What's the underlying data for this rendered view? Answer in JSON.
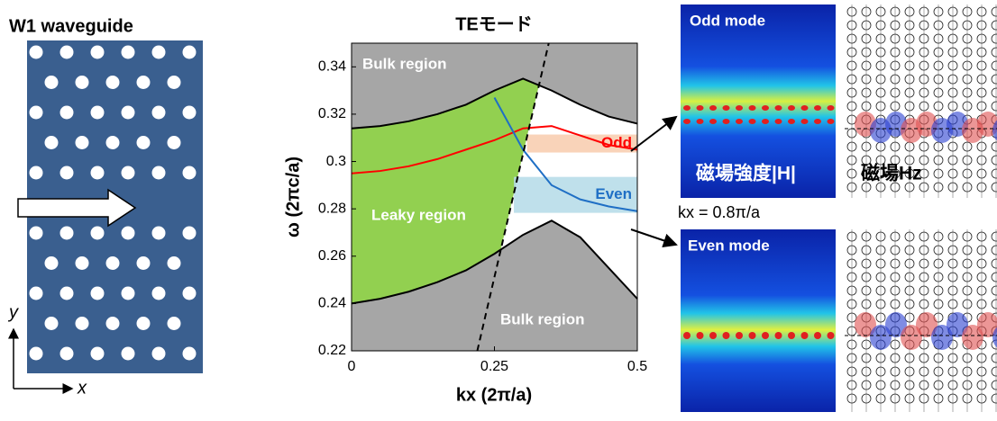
{
  "left_panel": {
    "title": "W1 waveguide",
    "x_axis": "x",
    "y_axis": "y"
  },
  "chart_data": {
    "type": "line",
    "title": "TEモード",
    "x_label": "kx (2π/a)",
    "y_label": "ω (2πc/a)",
    "xlim": [
      0,
      0.5
    ],
    "ylim": [
      0.22,
      0.35
    ],
    "xticks": [
      0,
      0.25,
      0.5
    ],
    "yticks": [
      0.22,
      0.24,
      0.26,
      0.28,
      0.3,
      0.32,
      0.34
    ],
    "x": [
      0,
      0.05,
      0.1,
      0.15,
      0.2,
      0.25,
      0.3,
      0.35,
      0.4,
      0.45,
      0.5
    ],
    "series": [
      {
        "color": "#000000",
        "values": [
          0.314,
          0.315,
          0.317,
          0.32,
          0.324,
          0.33,
          0.335,
          0.33,
          0.324,
          0.319,
          0.316
        ]
      },
      {
        "color": "#000000",
        "values": [
          0.24,
          0.242,
          0.245,
          0.249,
          0.254,
          0.261,
          0.269,
          0.275,
          0.268,
          0.255,
          0.242
        ]
      },
      {
        "color": "#ff0000",
        "values": [
          0.295,
          0.296,
          0.298,
          0.301,
          0.305,
          0.309,
          0.314,
          0.315,
          0.311,
          0.307,
          0.305
        ]
      },
      {
        "color": "#1f6fc5",
        "values": [
          null,
          null,
          null,
          null,
          null,
          0.327,
          0.305,
          0.29,
          0.284,
          0.281,
          0.279
        ]
      }
    ],
    "light_line": {
      "x": [
        0.22,
        0.345
      ],
      "values": [
        0.22,
        0.35
      ],
      "color": "#000000",
      "dashed": true
    },
    "region_colors": {
      "bulk": "#a6a6a6",
      "leaky": "#92d050",
      "guided": "#ffffff"
    },
    "annotations": [
      "Bulk region",
      "Leaky region",
      "Bulk region"
    ],
    "bands": [
      {
        "label": "Odd",
        "label_color": "#ff0000",
        "color": "#f8cbad",
        "xlim": [
          0.307,
          0.5
        ],
        "ylim": [
          0.3038,
          0.3114
        ]
      },
      {
        "label": "Even",
        "label_color": "#1f6fc5",
        "color": "#b4dbe8",
        "xlim": [
          0.284,
          0.5
        ],
        "ylim": [
          0.2783,
          0.2935
        ]
      }
    ]
  },
  "right_panels": {
    "odd_title": "Odd mode",
    "even_title": "Even mode",
    "abs_label": "磁場強度|H|",
    "hz_label": "磁場Hz",
    "k_label": "kx = 0.8π/a"
  }
}
